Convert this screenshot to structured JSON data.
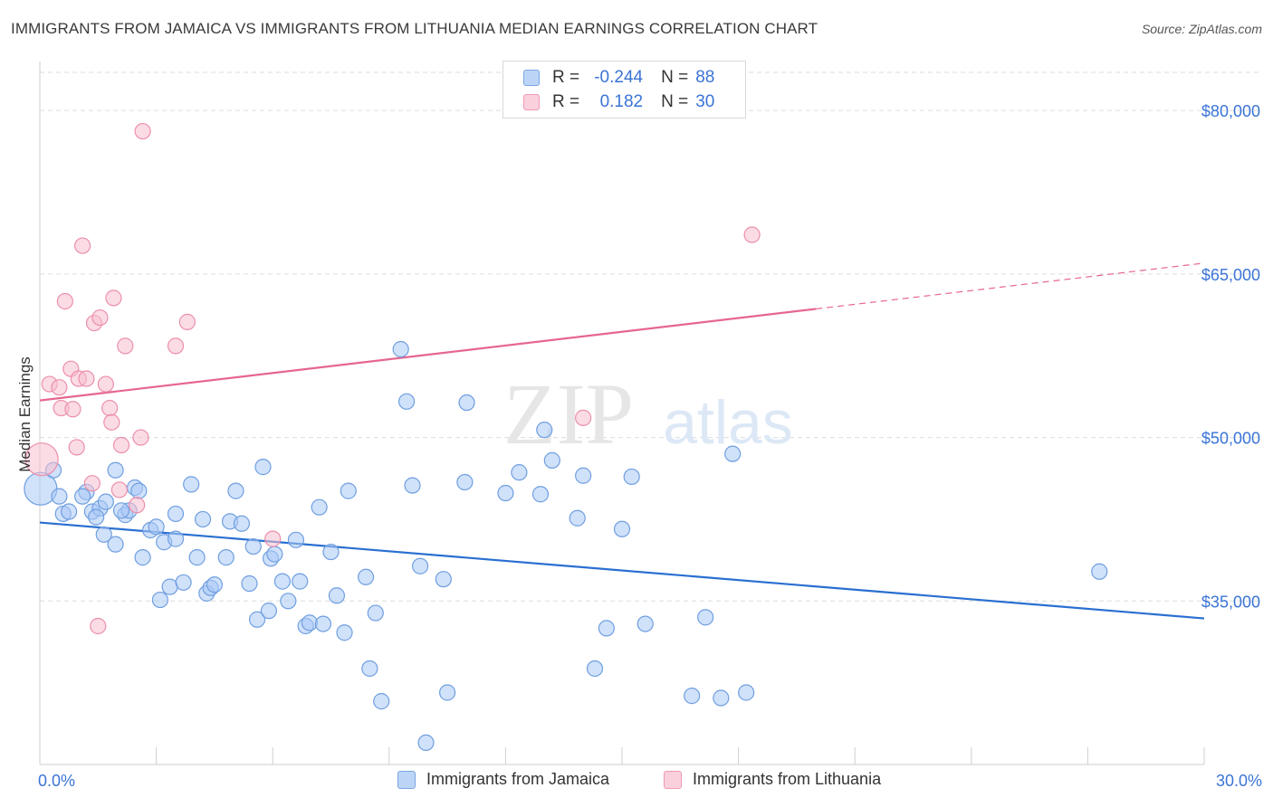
{
  "title": "IMMIGRANTS FROM JAMAICA VS IMMIGRANTS FROM LITHUANIA MEDIAN EARNINGS CORRELATION CHART",
  "source": "Source: ZipAtlas.com",
  "watermark": {
    "zip": "ZIP",
    "atlas": "atlas"
  },
  "legend": {
    "jamaica": {
      "r_label": "R =",
      "r_value": "-0.244",
      "n_label": "N =",
      "n_value": "88",
      "color": "#a9c9f5",
      "stroke": "#6f9fe0"
    },
    "lithuania": {
      "r_label": "R =",
      "r_value": "0.182",
      "n_label": "N =",
      "n_value": "30",
      "color": "#f7bfd0",
      "stroke": "#ec8fab"
    }
  },
  "bottom_legend": {
    "jamaica": "Immigrants from Jamaica",
    "lithuania": "Immigrants from Lithuania"
  },
  "chart_data": {
    "type": "scatter",
    "title": "IMMIGRANTS FROM JAMAICA VS IMMIGRANTS FROM LITHUANIA MEDIAN EARNINGS CORRELATION CHART",
    "xlabel": "",
    "ylabel": "Median Earnings",
    "xlim": [
      0,
      30
    ],
    "ylim": [
      20000,
      83500
    ],
    "x_tick_labels": [
      "0.0%",
      "30.0%"
    ],
    "y_ticks": [
      35000,
      50000,
      65000,
      80000
    ],
    "y_tick_labels": [
      "$35,000",
      "$50,000",
      "$65,000",
      "$80,000"
    ],
    "grid": true,
    "legend_position": "top-center",
    "series": [
      {
        "name": "Immigrants from Jamaica",
        "color": "#a9c9f5",
        "stroke": "#6f9fe0",
        "trend": {
          "x": [
            0,
            30
          ],
          "y": [
            42200,
            33400
          ],
          "color": "#2a6fd1",
          "dashed_from": null
        },
        "points": [
          [
            0.02,
            45300
          ],
          [
            0.35,
            47000
          ],
          [
            0.5,
            44600
          ],
          [
            0.6,
            43000
          ],
          [
            0.75,
            43200
          ],
          [
            1.2,
            45000
          ],
          [
            1.35,
            43200
          ],
          [
            1.55,
            43500
          ],
          [
            1.7,
            44100
          ],
          [
            1.45,
            42700
          ],
          [
            1.65,
            41100
          ],
          [
            1.95,
            40200
          ],
          [
            1.95,
            47000
          ],
          [
            2.2,
            42900
          ],
          [
            2.3,
            43300
          ],
          [
            2.45,
            45400
          ],
          [
            2.55,
            45100
          ],
          [
            2.65,
            39000
          ],
          [
            2.85,
            41500
          ],
          [
            3.0,
            41800
          ],
          [
            3.1,
            35100
          ],
          [
            3.2,
            40400
          ],
          [
            3.35,
            36300
          ],
          [
            3.5,
            40700
          ],
          [
            3.5,
            43000
          ],
          [
            3.7,
            36700
          ],
          [
            3.9,
            45700
          ],
          [
            4.05,
            39000
          ],
          [
            4.2,
            42500
          ],
          [
            4.3,
            35700
          ],
          [
            4.4,
            36200
          ],
          [
            4.5,
            36500
          ],
          [
            4.8,
            39000
          ],
          [
            4.9,
            42300
          ],
          [
            5.05,
            45100
          ],
          [
            5.2,
            42100
          ],
          [
            5.4,
            36600
          ],
          [
            5.5,
            40000
          ],
          [
            5.6,
            33300
          ],
          [
            5.75,
            47300
          ],
          [
            5.9,
            34100
          ],
          [
            5.95,
            38900
          ],
          [
            6.05,
            39300
          ],
          [
            6.25,
            36800
          ],
          [
            6.4,
            35000
          ],
          [
            6.6,
            40600
          ],
          [
            6.7,
            36800
          ],
          [
            6.85,
            32700
          ],
          [
            6.95,
            33000
          ],
          [
            7.2,
            43600
          ],
          [
            7.3,
            32900
          ],
          [
            7.5,
            39500
          ],
          [
            7.65,
            35500
          ],
          [
            7.85,
            32100
          ],
          [
            7.95,
            45100
          ],
          [
            8.4,
            37200
          ],
          [
            8.5,
            28800
          ],
          [
            8.65,
            33900
          ],
          [
            8.8,
            25800
          ],
          [
            9.3,
            58100
          ],
          [
            9.45,
            53300
          ],
          [
            9.6,
            45600
          ],
          [
            9.8,
            38200
          ],
          [
            9.95,
            22000
          ],
          [
            10.4,
            37000
          ],
          [
            10.5,
            26600
          ],
          [
            10.95,
            45900
          ],
          [
            11.0,
            53200
          ],
          [
            12.0,
            44900
          ],
          [
            12.35,
            46800
          ],
          [
            12.9,
            44800
          ],
          [
            13.0,
            50700
          ],
          [
            13.2,
            47900
          ],
          [
            13.85,
            42600
          ],
          [
            14.0,
            46500
          ],
          [
            14.3,
            28800
          ],
          [
            14.6,
            32500
          ],
          [
            15.0,
            41600
          ],
          [
            15.25,
            46400
          ],
          [
            15.6,
            32900
          ],
          [
            16.8,
            26300
          ],
          [
            17.15,
            33500
          ],
          [
            17.55,
            26100
          ],
          [
            17.85,
            48500
          ],
          [
            18.2,
            26600
          ],
          [
            27.3,
            37700
          ],
          [
            1.1,
            44600
          ],
          [
            2.1,
            43300
          ]
        ]
      },
      {
        "name": "Immigrants from Lithuania",
        "color": "#f7bfd0",
        "stroke": "#ec8fab",
        "trend": {
          "x": [
            0,
            30
          ],
          "y": [
            53400,
            66000
          ],
          "color": "#e6668f",
          "dashed_from": 20
        },
        "points": [
          [
            0.05,
            48000
          ],
          [
            0.25,
            54900
          ],
          [
            0.5,
            54600
          ],
          [
            0.55,
            52700
          ],
          [
            0.65,
            62500
          ],
          [
            0.8,
            56300
          ],
          [
            0.85,
            52600
          ],
          [
            0.95,
            49100
          ],
          [
            1.0,
            55400
          ],
          [
            1.1,
            67600
          ],
          [
            1.2,
            55400
          ],
          [
            1.35,
            45800
          ],
          [
            1.4,
            60500
          ],
          [
            1.5,
            32700
          ],
          [
            1.55,
            61000
          ],
          [
            1.7,
            54900
          ],
          [
            1.8,
            52700
          ],
          [
            1.85,
            51400
          ],
          [
            1.9,
            62800
          ],
          [
            2.05,
            45200
          ],
          [
            2.1,
            49300
          ],
          [
            2.2,
            58400
          ],
          [
            2.5,
            43800
          ],
          [
            2.6,
            50000
          ],
          [
            2.65,
            78100
          ],
          [
            3.5,
            58400
          ],
          [
            3.8,
            60600
          ],
          [
            6.0,
            40700
          ],
          [
            14.0,
            51800
          ],
          [
            18.35,
            68600
          ]
        ]
      }
    ]
  }
}
